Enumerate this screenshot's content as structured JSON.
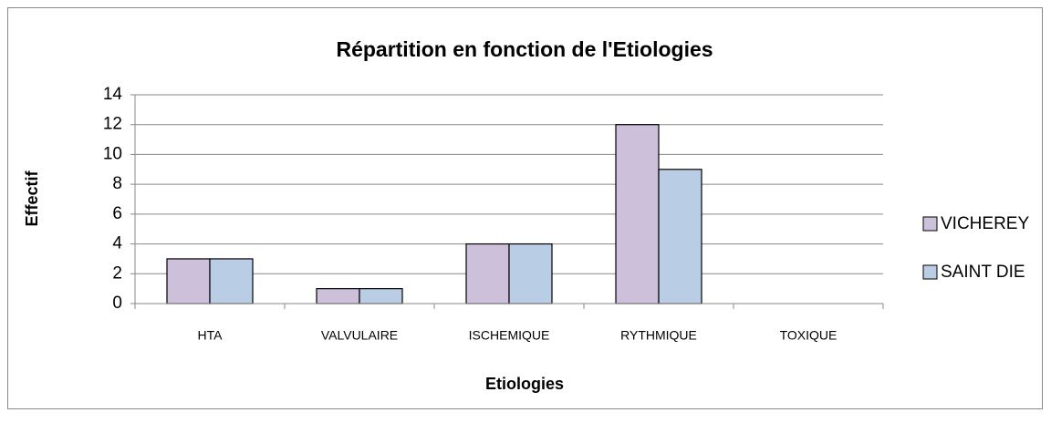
{
  "chart_data": {
    "type": "bar",
    "title": "Répartition en fonction de l'Etiologies",
    "x_label": "Etiologies",
    "y_label": "Effectif",
    "categories": [
      "HTA",
      "VALVULAIRE",
      "ISCHEMIQUE",
      "RYTHMIQUE",
      "TOXIQUE"
    ],
    "series": [
      {
        "name": "VICHEREY",
        "color": "#ccc0da",
        "values": [
          3,
          1,
          4,
          12,
          0
        ]
      },
      {
        "name": "SAINT DIE",
        "color": "#b9cde5",
        "values": [
          3,
          1,
          4,
          9,
          0
        ]
      }
    ],
    "ylim": [
      0,
      14
    ],
    "yticks": [
      0,
      2,
      4,
      6,
      8,
      10,
      12,
      14
    ],
    "grid": true,
    "legend": "right"
  }
}
